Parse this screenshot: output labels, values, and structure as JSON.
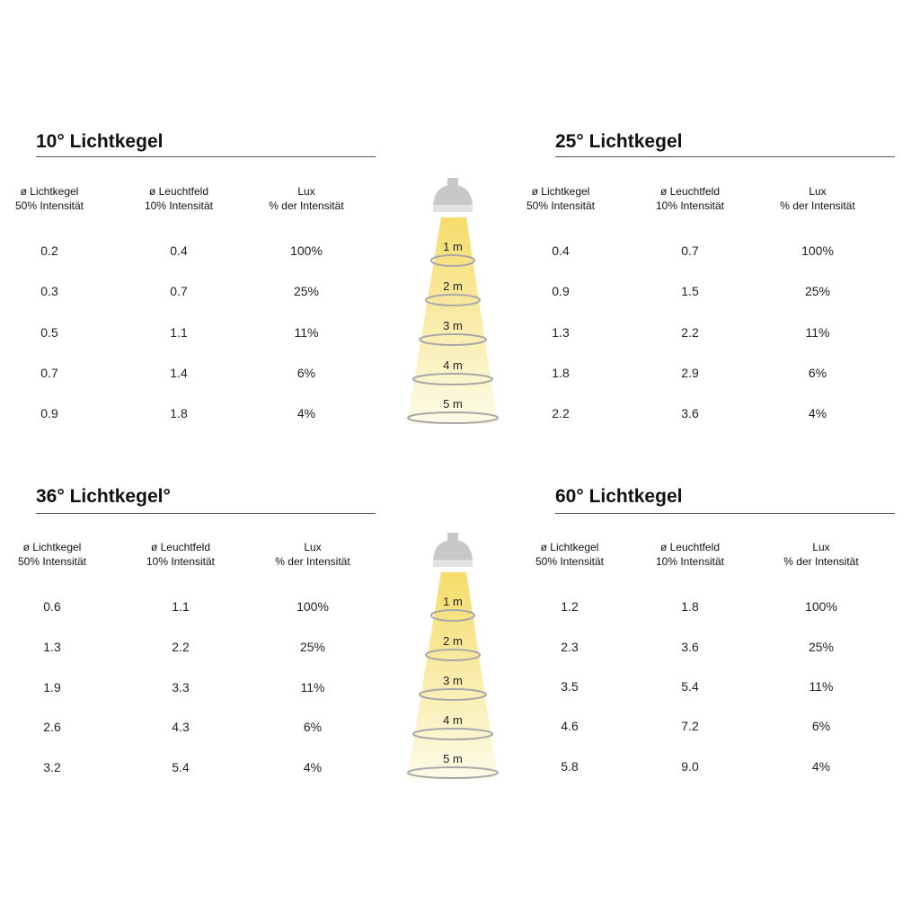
{
  "headers": [
    [
      "ø Lichtkegel",
      "50% Intensität"
    ],
    [
      "ø Leuchtfeld",
      "10% Intensität"
    ],
    [
      "Lux",
      "% der Intensität"
    ]
  ],
  "distances": [
    "1 m",
    "2 m",
    "3 m",
    "4 m",
    "5 m"
  ],
  "colors": {
    "cone_top": "#f5dc6a",
    "cone_bottom": "#fdfbe8",
    "ring": "#a8a8a8",
    "lamp": "#c8c8c8"
  },
  "sections": [
    {
      "title": "10° Lichtkegel",
      "rows": [
        [
          "0.2",
          "0.4",
          "100%"
        ],
        [
          "0.3",
          "0.7",
          "25%"
        ],
        [
          "0.5",
          "1.1",
          "11%"
        ],
        [
          "0.7",
          "1.4",
          "6%"
        ],
        [
          "0.9",
          "1.8",
          "4%"
        ]
      ]
    },
    {
      "title": "25° Lichtkegel",
      "rows": [
        [
          "0.4",
          "0.7",
          "100%"
        ],
        [
          "0.9",
          "1.5",
          "25%"
        ],
        [
          "1.3",
          "2.2",
          "11%"
        ],
        [
          "1.8",
          "2.9",
          "6%"
        ],
        [
          "2.2",
          "3.6",
          "4%"
        ]
      ]
    },
    {
      "title": "36° Lichtkegel°",
      "rows": [
        [
          "0.6",
          "1.1",
          "100%"
        ],
        [
          "1.3",
          "2.2",
          "25%"
        ],
        [
          "1.9",
          "3.3",
          "11%"
        ],
        [
          "2.6",
          "4.3",
          "6%"
        ],
        [
          "3.2",
          "5.4",
          "4%"
        ]
      ]
    },
    {
      "title": "60° Lichtkegel",
      "rows": [
        [
          "1.2",
          "1.8",
          "100%"
        ],
        [
          "2.3",
          "3.6",
          "25%"
        ],
        [
          "3.5",
          "5.4",
          "11%"
        ],
        [
          "4.6",
          "7.2",
          "6%"
        ],
        [
          "5.8",
          "9.0",
          "4%"
        ]
      ]
    }
  ]
}
